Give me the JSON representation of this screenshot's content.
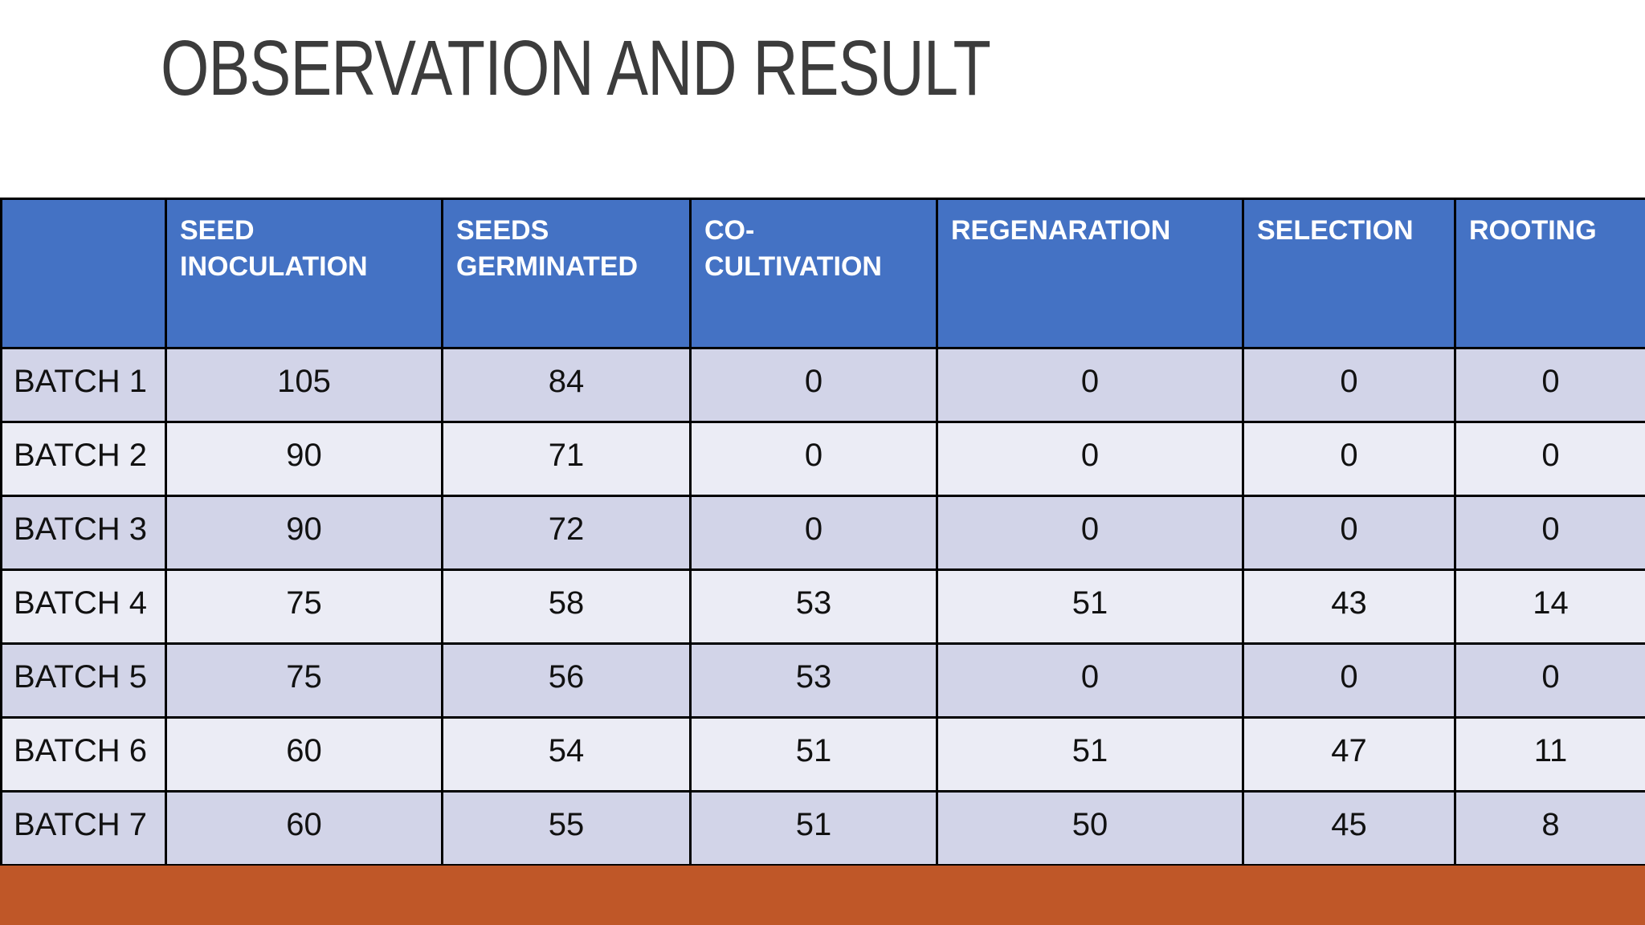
{
  "slide": {
    "title": "OBSERVATION AND RESULT"
  },
  "table": {
    "corner_label": "",
    "headers": [
      "SEED\nINOCULATION",
      "SEEDS\nGERMINATED",
      "CO-\nCULTIVATION",
      "REGENARATION",
      "SELECTION",
      "ROOTING"
    ],
    "rows": [
      {
        "label": "BATCH 1",
        "values": [
          105,
          84,
          0,
          0,
          0,
          0
        ]
      },
      {
        "label": "BATCH 2",
        "values": [
          90,
          71,
          0,
          0,
          0,
          0
        ]
      },
      {
        "label": "BATCH 3",
        "values": [
          90,
          72,
          0,
          0,
          0,
          0
        ]
      },
      {
        "label": "BATCH 4",
        "values": [
          75,
          58,
          53,
          51,
          43,
          14
        ]
      },
      {
        "label": "BATCH 5",
        "values": [
          75,
          56,
          53,
          0,
          0,
          0
        ]
      },
      {
        "label": "BATCH 6",
        "values": [
          60,
          54,
          51,
          51,
          47,
          11
        ]
      },
      {
        "label": "BATCH 7",
        "values": [
          60,
          55,
          51,
          50,
          45,
          8
        ]
      }
    ]
  },
  "chart_data": {
    "type": "table",
    "title": "OBSERVATION AND RESULT",
    "columns": [
      "",
      "SEED INOCULATION",
      "SEEDS GERMINATED",
      "CO-CULTIVATION",
      "REGENARATION",
      "SELECTION",
      "ROOTING"
    ],
    "rows": [
      [
        "BATCH 1",
        105,
        84,
        0,
        0,
        0,
        0
      ],
      [
        "BATCH 2",
        90,
        71,
        0,
        0,
        0,
        0
      ],
      [
        "BATCH 3",
        90,
        72,
        0,
        0,
        0,
        0
      ],
      [
        "BATCH 4",
        75,
        58,
        53,
        51,
        43,
        14
      ],
      [
        "BATCH 5",
        75,
        56,
        53,
        0,
        0,
        0
      ],
      [
        "BATCH 6",
        60,
        54,
        51,
        51,
        47,
        11
      ],
      [
        "BATCH 7",
        60,
        55,
        51,
        50,
        45,
        8
      ]
    ]
  },
  "colors": {
    "header_bg": "#4472c4",
    "header_text": "#ffffff",
    "band_dark": "#d2d4e8",
    "band_light": "#ebecf5",
    "accent_bar": "#bf5728",
    "title_text": "#3c3c3c",
    "grid_line": "#000000"
  }
}
